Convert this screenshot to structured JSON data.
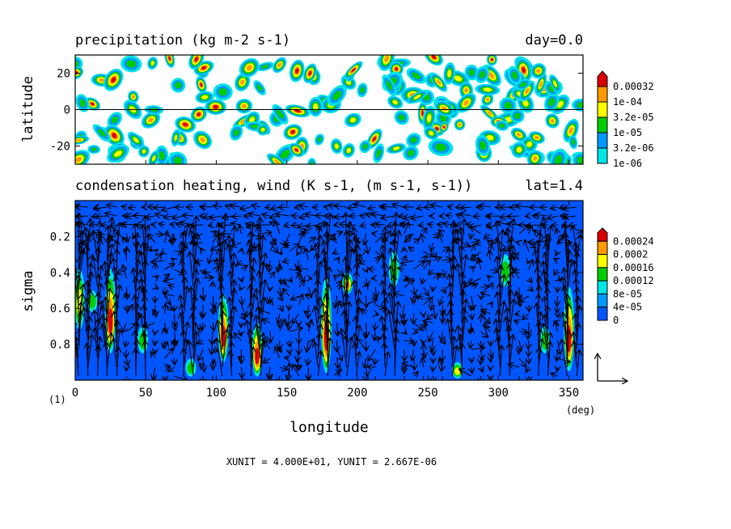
{
  "chart_data": [
    {
      "type": "heatmap",
      "title": "precipitation (kg m-2 s-1)",
      "annotation": "day=0.0",
      "ylabel": "latitude",
      "xlim": [
        0,
        360
      ],
      "ylim": [
        -30,
        30
      ],
      "yticks": [
        {
          "value": 20,
          "label": "20"
        },
        {
          "value": 0,
          "label": "0"
        },
        {
          "value": -20,
          "label": "-20"
        }
      ],
      "zero_line": 0,
      "colorbar": {
        "levels": [
          "0.00032",
          "1e-04",
          "3.2e-05",
          "1e-05",
          "3.2e-06",
          "1e-06"
        ],
        "colors": [
          "#d80000",
          "#ff9900",
          "#ffff00",
          "#00cc00",
          "#0099ff",
          "#00e5e5"
        ]
      }
    },
    {
      "type": "heatmap",
      "title": "condensation heating, wind (K s-1, (m s-1, s-1))",
      "annotation": "lat=1.4",
      "ylabel": "sigma",
      "xlabel": "longitude",
      "xunit": "(deg)",
      "xlim": [
        0,
        360
      ],
      "ylim": [
        1.0,
        0.0
      ],
      "xticks": [
        {
          "value": 0,
          "label": "0"
        },
        {
          "value": 50,
          "label": "50"
        },
        {
          "value": 100,
          "label": "100"
        },
        {
          "value": 150,
          "label": "150"
        },
        {
          "value": 200,
          "label": "200"
        },
        {
          "value": 250,
          "label": "250"
        },
        {
          "value": 300,
          "label": "300"
        },
        {
          "value": 350,
          "label": "350"
        }
      ],
      "yticks": [
        {
          "value": 0.2,
          "label": "0.2"
        },
        {
          "value": 0.4,
          "label": "0.4"
        },
        {
          "value": 0.6,
          "label": "0.6"
        },
        {
          "value": 0.8,
          "label": "0.8"
        }
      ],
      "background_level_color": "#0055ff",
      "heating_plumes": [
        {
          "lon": 3,
          "top": 0.38,
          "bottom": 0.72,
          "peak": 0.5
        },
        {
          "lon": 12,
          "top": 0.5,
          "bottom": 0.62,
          "peak": 0.3
        },
        {
          "lon": 25,
          "top": 0.38,
          "bottom": 0.85,
          "peak": 1.0
        },
        {
          "lon": 48,
          "top": 0.7,
          "bottom": 0.85,
          "peak": 0.3
        },
        {
          "lon": 82,
          "top": 0.88,
          "bottom": 0.98,
          "peak": 0.45
        },
        {
          "lon": 105,
          "top": 0.52,
          "bottom": 0.9,
          "peak": 1.0
        },
        {
          "lon": 129,
          "top": 0.68,
          "bottom": 0.98,
          "peak": 1.0
        },
        {
          "lon": 178,
          "top": 0.42,
          "bottom": 0.96,
          "peak": 1.0
        },
        {
          "lon": 193,
          "top": 0.4,
          "bottom": 0.52,
          "peak": 0.7
        },
        {
          "lon": 226,
          "top": 0.28,
          "bottom": 0.48,
          "peak": 0.3
        },
        {
          "lon": 271,
          "top": 0.9,
          "bottom": 0.99,
          "peak": 0.5
        },
        {
          "lon": 305,
          "top": 0.3,
          "bottom": 0.48,
          "peak": 0.3
        },
        {
          "lon": 333,
          "top": 0.7,
          "bottom": 0.85,
          "peak": 0.3
        },
        {
          "lon": 350,
          "top": 0.48,
          "bottom": 0.95,
          "peak": 1.0
        }
      ],
      "colorbar": {
        "levels": [
          "0.00024",
          "0.0002",
          "0.00016",
          "0.00012",
          "8e-05",
          "4e-05",
          "0"
        ],
        "colors": [
          "#d80000",
          "#ff9900",
          "#ffff00",
          "#00cc00",
          "#00e5e5",
          "#0099ff",
          "#0055ff"
        ]
      },
      "vector_units": "XUNIT = 4.000E+01, YUNIT = 2.667E-06",
      "frame_label": "(1)"
    }
  ]
}
